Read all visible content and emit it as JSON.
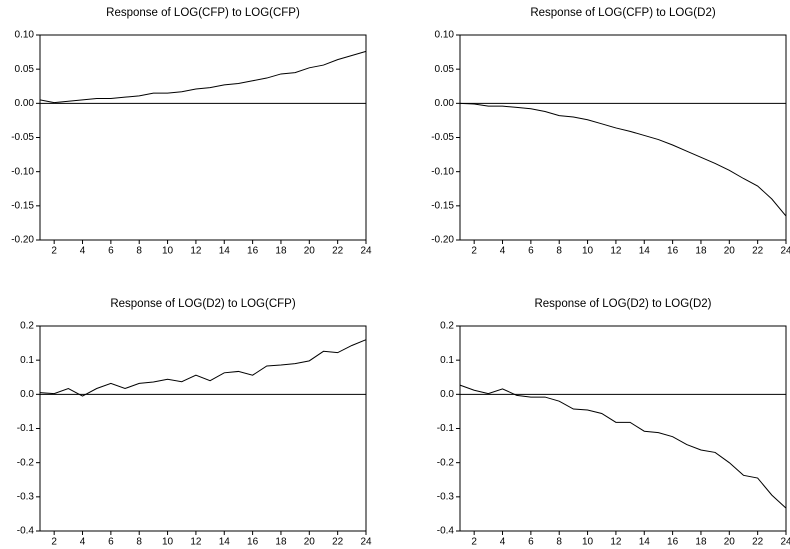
{
  "chart_data": [
    {
      "type": "line",
      "title": "Response of LOG(CFP) to LOG(CFP)",
      "x": [
        1,
        2,
        3,
        4,
        5,
        6,
        7,
        8,
        9,
        10,
        11,
        12,
        13,
        14,
        15,
        16,
        17,
        18,
        19,
        20,
        21,
        22,
        23,
        24
      ],
      "values": [
        0.005,
        0.001,
        0.003,
        0.005,
        0.007,
        0.007,
        0.009,
        0.011,
        0.015,
        0.015,
        0.017,
        0.021,
        0.023,
        0.027,
        0.029,
        0.033,
        0.037,
        0.043,
        0.045,
        0.052,
        0.056,
        0.064,
        0.07,
        0.076
      ],
      "color": "#000000",
      "xlim": [
        1,
        24
      ],
      "xticks": [
        2,
        4,
        6,
        8,
        10,
        12,
        14,
        16,
        18,
        20,
        22,
        24
      ],
      "ylim": [
        -0.2,
        0.1
      ],
      "yticks": [
        {
          "value": -0.2,
          "label": "-0.20"
        },
        -0.15,
        {
          "value": -0.1,
          "label": "-0.10"
        },
        -0.05,
        {
          "value": 0,
          "label": "0.00"
        },
        0.05,
        {
          "value": 0.1,
          "label": "0.10"
        }
      ]
    },
    {
      "type": "line",
      "title": "Response of LOG(CFP) to LOG(D2)",
      "x": [
        1,
        2,
        3,
        4,
        5,
        6,
        7,
        8,
        9,
        10,
        11,
        12,
        13,
        14,
        15,
        16,
        17,
        18,
        19,
        20,
        21,
        22,
        23,
        24
      ],
      "values": [
        0.0,
        -0.001,
        -0.004,
        -0.004,
        -0.006,
        -0.008,
        -0.012,
        -0.018,
        -0.02,
        -0.024,
        -0.03,
        -0.036,
        -0.041,
        -0.047,
        -0.053,
        -0.061,
        -0.07,
        -0.079,
        -0.088,
        -0.098,
        -0.11,
        -0.121,
        -0.14,
        -0.165
      ],
      "color": "#000000",
      "xlim": [
        1,
        24
      ],
      "xticks": [
        2,
        4,
        6,
        8,
        10,
        12,
        14,
        16,
        18,
        20,
        22,
        24
      ],
      "ylim": [
        -0.2,
        0.1
      ],
      "yticks": [
        {
          "value": -0.2,
          "label": "-0.20"
        },
        -0.15,
        {
          "value": -0.1,
          "label": "-0.10"
        },
        -0.05,
        {
          "value": 0,
          "label": "0.00"
        },
        0.05,
        {
          "value": 0.1,
          "label": "0.10"
        }
      ]
    },
    {
      "type": "line",
      "title": "Response of LOG(D2) to LOG(CFP)",
      "x": [
        1,
        2,
        3,
        4,
        5,
        6,
        7,
        8,
        9,
        10,
        11,
        12,
        13,
        14,
        15,
        16,
        17,
        18,
        19,
        20,
        21,
        22,
        23,
        24
      ],
      "values": [
        0.005,
        0.002,
        0.017,
        -0.005,
        0.017,
        0.032,
        0.017,
        0.032,
        0.036,
        0.044,
        0.037,
        0.056,
        0.04,
        0.063,
        0.067,
        0.056,
        0.083,
        0.086,
        0.09,
        0.098,
        0.126,
        0.122,
        0.143,
        0.16
      ],
      "color": "#000000",
      "xlim": [
        1,
        24
      ],
      "xticks": [
        2,
        4,
        6,
        8,
        10,
        12,
        14,
        16,
        18,
        20,
        22,
        24
      ],
      "ylim": [
        -0.4,
        0.2
      ],
      "yticks": [
        -0.4,
        -0.3,
        -0.2,
        -0.1,
        {
          "value": 0,
          "label": "0.0"
        },
        0.1,
        0.2
      ]
    },
    {
      "type": "line",
      "title": "Response of LOG(D2) to LOG(D2)",
      "x": [
        1,
        2,
        3,
        4,
        5,
        6,
        7,
        8,
        9,
        10,
        11,
        12,
        13,
        14,
        15,
        16,
        17,
        18,
        19,
        20,
        21,
        22,
        23,
        24
      ],
      "values": [
        0.027,
        0.012,
        0.002,
        0.016,
        -0.003,
        -0.008,
        -0.008,
        -0.02,
        -0.043,
        -0.046,
        -0.056,
        -0.082,
        -0.082,
        -0.108,
        -0.112,
        -0.124,
        -0.147,
        -0.163,
        -0.17,
        -0.2,
        -0.237,
        -0.245,
        -0.295,
        -0.333
      ],
      "color": "#000000",
      "xlim": [
        1,
        24
      ],
      "xticks": [
        2,
        4,
        6,
        8,
        10,
        12,
        14,
        16,
        18,
        20,
        22,
        24
      ],
      "ylim": [
        -0.4,
        0.2
      ],
      "yticks": [
        -0.4,
        -0.3,
        -0.2,
        -0.1,
        {
          "value": 0,
          "label": "0.0"
        },
        0.1,
        0.2
      ]
    }
  ]
}
